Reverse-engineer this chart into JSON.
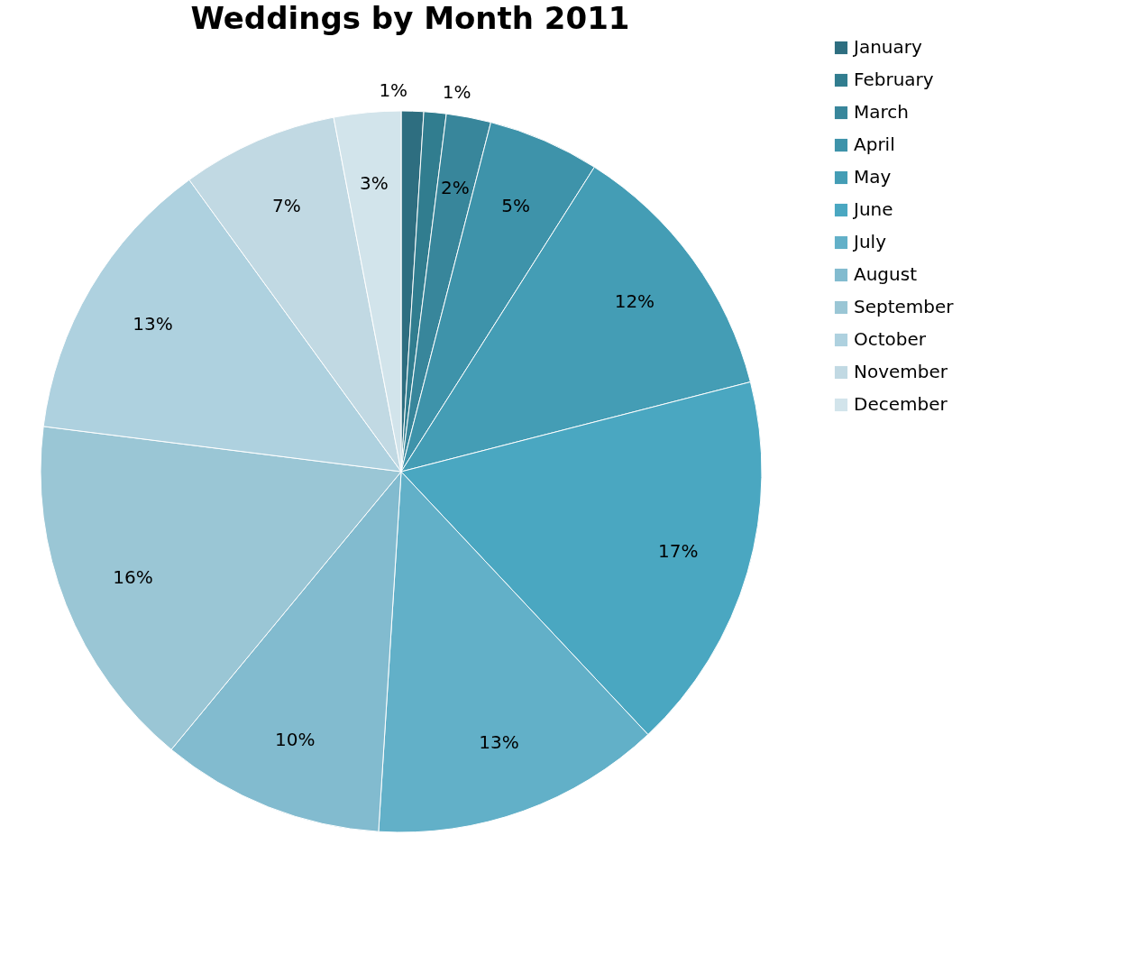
{
  "chart_data": {
    "type": "pie",
    "title": "Weddings by Month 2011",
    "categories": [
      "January",
      "February",
      "March",
      "April",
      "May",
      "June",
      "July",
      "August",
      "September",
      "October",
      "November",
      "December"
    ],
    "values": [
      1,
      1,
      2,
      5,
      12,
      17,
      13,
      10,
      16,
      13,
      7,
      3
    ],
    "value_labels": [
      "1%",
      "1%",
      "2%",
      "5%",
      "12%",
      "17%",
      "13%",
      "10%",
      "16%",
      "13%",
      "7%",
      "3%"
    ],
    "colors": [
      "#2e6e80",
      "#317d8f",
      "#38869b",
      "#3e93aa",
      "#449db5",
      "#4aa7c1",
      "#62b0c8",
      "#82bbcf",
      "#9ac6d5",
      "#aed1df",
      "#c1d9e3",
      "#d2e4eb"
    ],
    "legend": "right"
  }
}
